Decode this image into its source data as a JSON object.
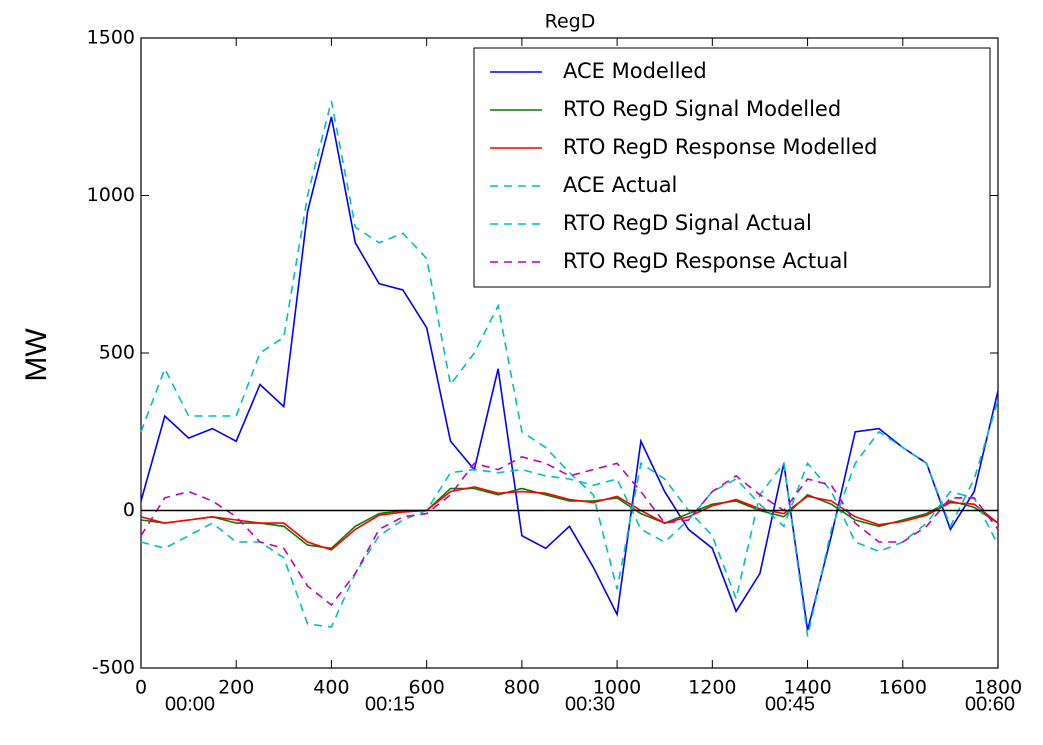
{
  "chart_data": {
    "type": "line",
    "title": "RegD",
    "y_label": "MW",
    "x": [
      0,
      50,
      100,
      150,
      200,
      250,
      300,
      350,
      400,
      450,
      500,
      550,
      600,
      650,
      700,
      750,
      800,
      850,
      900,
      950,
      1000,
      1050,
      1100,
      1150,
      1200,
      1250,
      1300,
      1350,
      1400,
      1450,
      1500,
      1550,
      1600,
      1650,
      1700,
      1750,
      1800
    ],
    "series": [
      {
        "name": "ACE Modelled",
        "color": "#0000ff",
        "dashed": false,
        "values": [
          30,
          300,
          230,
          260,
          220,
          400,
          330,
          950,
          1250,
          850,
          720,
          700,
          580,
          220,
          130,
          450,
          -80,
          -120,
          -50,
          -180,
          -330,
          220,
          60,
          -60,
          -120,
          -320,
          -200,
          150,
          -380,
          -80,
          250,
          260,
          200,
          150,
          -60,
          60,
          380
        ]
      },
      {
        "name": "RTO RegD Signal Modelled",
        "color": "#008000",
        "dashed": false,
        "values": [
          -30,
          -40,
          -30,
          -20,
          -40,
          -40,
          -50,
          -110,
          -120,
          -50,
          -10,
          0,
          0,
          70,
          70,
          50,
          70,
          50,
          30,
          30,
          40,
          -10,
          -40,
          -10,
          20,
          30,
          0,
          -20,
          50,
          20,
          -30,
          -50,
          -30,
          -10,
          30,
          10,
          -40
        ]
      },
      {
        "name": "RTO RegD Response Modelled",
        "color": "#ff0000",
        "dashed": false,
        "values": [
          -20,
          -40,
          -30,
          -20,
          -30,
          -40,
          -40,
          -100,
          -125,
          -60,
          -15,
          -5,
          0,
          60,
          75,
          55,
          60,
          55,
          35,
          25,
          45,
          0,
          -40,
          -20,
          15,
          35,
          5,
          -10,
          45,
          30,
          -20,
          -45,
          -35,
          -15,
          25,
          20,
          -40
        ]
      },
      {
        "name": "ACE Actual",
        "color": "#00bfbf",
        "dashed": true,
        "values": [
          250,
          450,
          300,
          300,
          300,
          500,
          550,
          1000,
          1300,
          900,
          850,
          880,
          800,
          400,
          500,
          650,
          250,
          200,
          120,
          50,
          -250,
          150,
          100,
          0,
          -80,
          -280,
          50,
          150,
          -400,
          -60,
          150,
          250,
          200,
          150,
          -50,
          100,
          350
        ]
      },
      {
        "name": "RTO RegD Signal Actual",
        "color": "#00bfbf",
        "dashed": true,
        "values": [
          -100,
          -120,
          -80,
          -40,
          -100,
          -100,
          -150,
          -360,
          -370,
          -200,
          -80,
          -30,
          0,
          120,
          130,
          120,
          130,
          110,
          100,
          80,
          100,
          -60,
          -100,
          -30,
          60,
          100,
          20,
          -50,
          150,
          60,
          -100,
          -130,
          -100,
          -40,
          60,
          40,
          -110
        ]
      },
      {
        "name": "RTO RegD Response Actual",
        "color": "#bf00bf",
        "dashed": true,
        "values": [
          -80,
          40,
          60,
          30,
          -20,
          -100,
          -120,
          -240,
          -300,
          -200,
          -60,
          -20,
          -10,
          50,
          150,
          130,
          170,
          150,
          110,
          130,
          150,
          60,
          -40,
          -30,
          60,
          110,
          50,
          0,
          100,
          80,
          -40,
          -100,
          -100,
          -50,
          40,
          40,
          -60
        ]
      }
    ],
    "xlim": [
      0,
      1800
    ],
    "xticks": [
      0,
      200,
      400,
      600,
      800,
      1000,
      1200,
      1400,
      1600,
      1800
    ],
    "ylim": [
      -500,
      1500
    ],
    "yticks": [
      -500,
      0,
      500,
      1000,
      1500
    ],
    "hline": 0,
    "legend": "upper right",
    "time_labels": [
      "00:00",
      "00:15",
      "00:30",
      "00:45",
      "00:60"
    ]
  }
}
